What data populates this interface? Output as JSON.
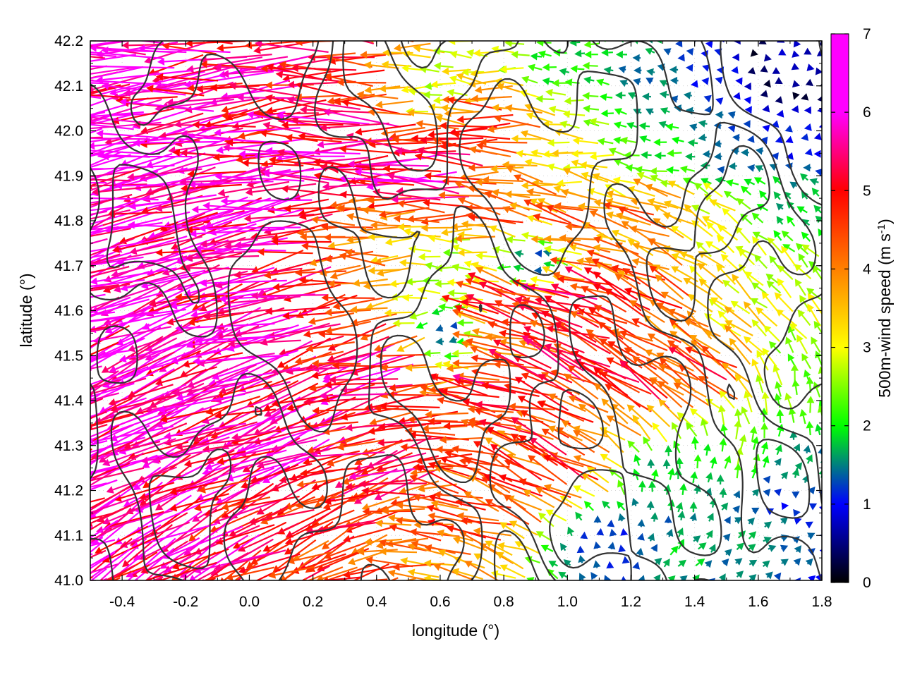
{
  "chart_data": {
    "type": "vector-field",
    "xlabel": "longitude (°)",
    "ylabel": "latitude (°)",
    "colorbar_label": "500m-wind speed (m s",
    "colorbar_label_sup": "-1",
    "colorbar_label_close": ")",
    "xlim": [
      -0.5,
      1.8
    ],
    "ylim": [
      41.0,
      42.2
    ],
    "xticks": [
      -0.4,
      -0.2,
      0.0,
      0.2,
      0.4,
      0.6,
      0.8,
      1.0,
      1.2,
      1.4,
      1.6,
      1.8
    ],
    "xtick_labels": [
      "-0.4",
      "-0.2",
      "0.0",
      "0.2",
      "0.4",
      "0.6",
      "0.8",
      "1.0",
      "1.2",
      "1.4",
      "1.6",
      "1.8"
    ],
    "yticks": [
      41.0,
      41.1,
      41.2,
      41.3,
      41.4,
      41.5,
      41.6,
      41.7,
      41.8,
      41.9,
      42.0,
      42.1,
      42.2
    ],
    "ytick_labels": [
      "41.0",
      "41.1",
      "41.2",
      "41.3",
      "41.4",
      "41.5",
      "41.6",
      "41.7",
      "41.8",
      "41.9",
      "42.0",
      "42.1",
      "42.2"
    ],
    "color_range": [
      0,
      7
    ],
    "colorbar_ticks": [
      "0",
      "1",
      "2",
      "3",
      "4",
      "5",
      "6",
      "7"
    ],
    "colormap": [
      "#000000",
      "#0000ff",
      "#00ff00",
      "#ffff00",
      "#ff8000",
      "#ff0000",
      "#ff00ff"
    ],
    "contour_color": "#333333",
    "grid": true,
    "regions": [
      {
        "area": "west and north-west",
        "speed": 7,
        "direction": "westward, slightly south"
      },
      {
        "area": "north-east",
        "speed": 2,
        "direction": "westward, weak"
      },
      {
        "area": "centre",
        "speed": 5.5,
        "direction": "north-westward"
      },
      {
        "area": "south-east",
        "speed": 2.5,
        "direction": "northward / north-eastward"
      }
    ],
    "vectors": [
      {
        "lon": -0.45,
        "lat": 42.18,
        "u": -7.0,
        "v": -0.3
      },
      {
        "lon": -0.35,
        "lat": 42.05,
        "u": -6.9,
        "v": -0.9
      },
      {
        "lon": -0.25,
        "lat": 41.9,
        "u": -6.8,
        "v": -1.4
      },
      {
        "lon": -0.4,
        "lat": 41.75,
        "u": -6.6,
        "v": -2.0
      },
      {
        "lon": -0.3,
        "lat": 41.6,
        "u": -6.5,
        "v": -2.4
      },
      {
        "lon": -0.2,
        "lat": 41.45,
        "u": -6.3,
        "v": -2.8
      },
      {
        "lon": -0.45,
        "lat": 41.3,
        "u": -6.0,
        "v": -3.0
      },
      {
        "lon": -0.3,
        "lat": 41.15,
        "u": -5.9,
        "v": -3.2
      },
      {
        "lon": -0.1,
        "lat": 41.05,
        "u": -5.5,
        "v": -3.0
      },
      {
        "lon": 0.05,
        "lat": 42.1,
        "u": -6.5,
        "v": -0.6
      },
      {
        "lon": 0.1,
        "lat": 41.8,
        "u": -6.8,
        "v": -1.1
      },
      {
        "lon": 0.15,
        "lat": 41.6,
        "u": -6.6,
        "v": -2.0
      },
      {
        "lon": 0.2,
        "lat": 41.35,
        "u": -6.3,
        "v": -2.5
      },
      {
        "lon": 0.3,
        "lat": 41.15,
        "u": -5.0,
        "v": -2.4
      },
      {
        "lon": 0.35,
        "lat": 42.15,
        "u": -5.8,
        "v": 0.4
      },
      {
        "lon": 0.4,
        "lat": 41.95,
        "u": -6.9,
        "v": -0.2
      },
      {
        "lon": 0.45,
        "lat": 41.75,
        "u": -4.5,
        "v": 0.0
      },
      {
        "lon": 0.5,
        "lat": 41.5,
        "u": -6.5,
        "v": -1.6
      },
      {
        "lon": 0.55,
        "lat": 41.3,
        "u": -6.0,
        "v": -2.2
      },
      {
        "lon": 0.6,
        "lat": 42.1,
        "u": -3.2,
        "v": 0.2
      },
      {
        "lon": 0.65,
        "lat": 41.9,
        "u": -6.7,
        "v": 0.1
      },
      {
        "lon": 0.65,
        "lat": 41.7,
        "u": -2.7,
        "v": 0.1
      },
      {
        "lon": 0.62,
        "lat": 41.55,
        "u": -1.2,
        "v": -0.3
      },
      {
        "lon": 0.7,
        "lat": 41.35,
        "u": -5.4,
        "v": 0.5
      },
      {
        "lon": 0.75,
        "lat": 41.15,
        "u": -5.0,
        "v": 1.5
      },
      {
        "lon": 0.8,
        "lat": 42.0,
        "u": -5.2,
        "v": 0.4
      },
      {
        "lon": 0.85,
        "lat": 41.8,
        "u": -5.5,
        "v": 1.0
      },
      {
        "lon": 0.9,
        "lat": 41.72,
        "u": -1.0,
        "v": 0.0
      },
      {
        "lon": 0.85,
        "lat": 41.6,
        "u": -5.5,
        "v": 1.4
      },
      {
        "lon": 0.9,
        "lat": 41.4,
        "u": -5.7,
        "v": 1.6
      },
      {
        "lon": 0.95,
        "lat": 41.2,
        "u": -4.8,
        "v": 2.5
      },
      {
        "lon": 1.0,
        "lat": 42.15,
        "u": -2.3,
        "v": 0.3
      },
      {
        "lon": 1.05,
        "lat": 41.95,
        "u": -3.6,
        "v": 0.4
      },
      {
        "lon": 1.05,
        "lat": 41.8,
        "u": -4.9,
        "v": 1.3
      },
      {
        "lon": 1.1,
        "lat": 41.6,
        "u": -5.6,
        "v": 2.0
      },
      {
        "lon": 1.12,
        "lat": 41.45,
        "u": -5.2,
        "v": 2.8
      },
      {
        "lon": 1.05,
        "lat": 41.25,
        "u": -5.0,
        "v": 2.5
      },
      {
        "lon": 1.1,
        "lat": 41.1,
        "u": 0.2,
        "v": 1.3
      },
      {
        "lon": 1.25,
        "lat": 42.1,
        "u": -1.6,
        "v": 0.4
      },
      {
        "lon": 1.25,
        "lat": 41.95,
        "u": -2.4,
        "v": 0.3
      },
      {
        "lon": 1.3,
        "lat": 41.8,
        "u": -4.4,
        "v": 2.0
      },
      {
        "lon": 1.3,
        "lat": 41.6,
        "u": -4.7,
        "v": 2.6
      },
      {
        "lon": 1.28,
        "lat": 41.4,
        "u": -4.8,
        "v": 3.0
      },
      {
        "lon": 1.3,
        "lat": 41.22,
        "u": 0.4,
        "v": 2.2
      },
      {
        "lon": 1.35,
        "lat": 41.05,
        "u": 1.4,
        "v": 1.5
      },
      {
        "lon": 1.45,
        "lat": 42.12,
        "u": -1.3,
        "v": 0.1
      },
      {
        "lon": 1.5,
        "lat": 41.95,
        "u": -1.4,
        "v": 0.0
      },
      {
        "lon": 1.5,
        "lat": 41.8,
        "u": -3.0,
        "v": 2.0
      },
      {
        "lon": 1.55,
        "lat": 41.6,
        "u": -2.8,
        "v": 2.4
      },
      {
        "lon": 1.5,
        "lat": 41.45,
        "u": -4.6,
        "v": 3.0
      },
      {
        "lon": 1.55,
        "lat": 41.28,
        "u": 0.9,
        "v": 2.8
      },
      {
        "lon": 1.6,
        "lat": 41.1,
        "u": 1.6,
        "v": 1.0
      },
      {
        "lon": 1.7,
        "lat": 42.15,
        "u": 1.0,
        "v": -0.3
      },
      {
        "lon": 1.72,
        "lat": 41.98,
        "u": -1.2,
        "v": -0.2
      },
      {
        "lon": 1.7,
        "lat": 41.82,
        "u": -1.5,
        "v": 1.5
      },
      {
        "lon": 1.72,
        "lat": 41.65,
        "u": -2.0,
        "v": 2.6
      },
      {
        "lon": 1.7,
        "lat": 41.42,
        "u": -0.3,
        "v": 3.0
      },
      {
        "lon": 1.72,
        "lat": 41.22,
        "u": 0.8,
        "v": 2.0
      },
      {
        "lon": 1.7,
        "lat": 41.18,
        "u": 1.4,
        "v": 0.0
      }
    ]
  }
}
